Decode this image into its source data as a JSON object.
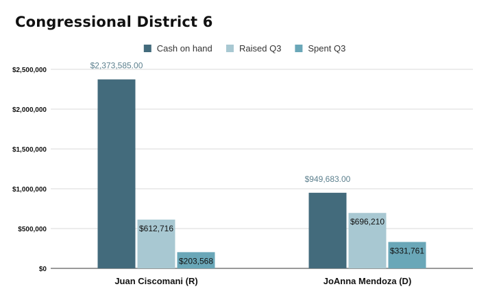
{
  "chart_data": {
    "type": "bar",
    "title": "Congressional District 6",
    "categories": [
      "Juan Ciscomani (R)",
      "JoAnna Mendoza (D)"
    ],
    "series": [
      {
        "name": "Cash on hand",
        "color": "#436b7c",
        "values": [
          2373585,
          949683
        ],
        "labels": [
          "$2,373,585.00",
          "$949,683.00"
        ],
        "label_color": "#5b7f8d"
      },
      {
        "name": "Raised Q3",
        "color": "#a8c8d2",
        "values": [
          612716,
          696210
        ],
        "labels": [
          "$612,716",
          "$696,210"
        ]
      },
      {
        "name": "Spent Q3",
        "color": "#6aa7b8",
        "values": [
          203568,
          331761
        ],
        "labels": [
          "$203,568",
          "$331,761"
        ]
      }
    ],
    "ylim": [
      0,
      2500000
    ],
    "yticks": [
      0,
      500000,
      1000000,
      1500000,
      2000000,
      2500000
    ],
    "ytick_labels": [
      "$0",
      "$500,000",
      "$1,000,000",
      "$1,500,000",
      "$2,000,000",
      "$2,500,000"
    ],
    "grid": true,
    "legend": "top",
    "xlabel": "",
    "ylabel": ""
  }
}
